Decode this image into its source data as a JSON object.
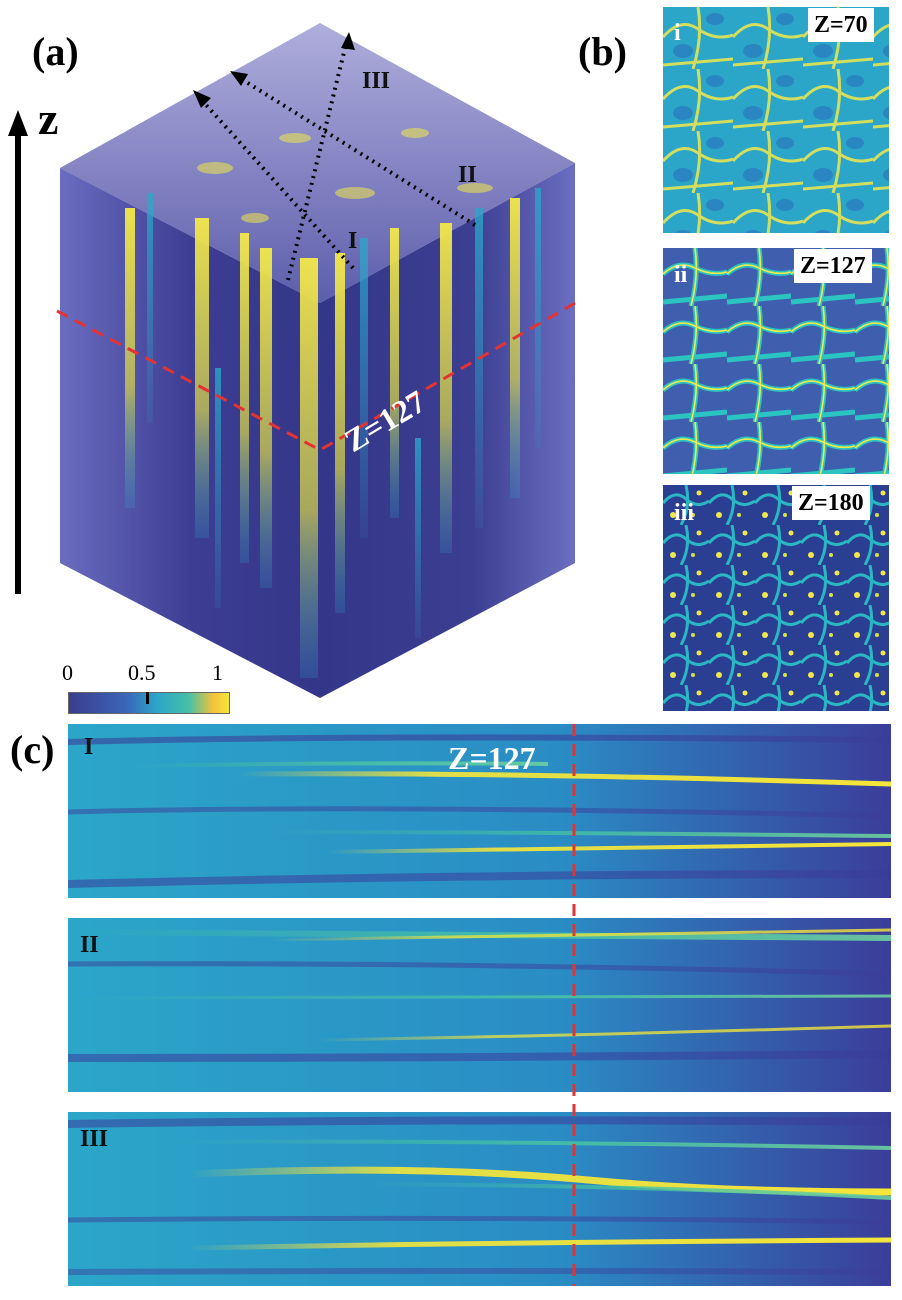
{
  "figure": {
    "panel_a": {
      "label": "(a)",
      "axis_label": "z",
      "cut_label": "Z=127",
      "line_labels": [
        "I",
        "II",
        "III"
      ],
      "colorbar": {
        "ticks": [
          "0",
          "0.5",
          "1"
        ],
        "range": [
          0,
          1
        ],
        "marker_value": 0.5
      }
    },
    "panel_b": {
      "label": "(b)",
      "slices": [
        {
          "tag": "i",
          "z_label": "Z=70"
        },
        {
          "tag": "ii",
          "z_label": "Z=127"
        },
        {
          "tag": "iii",
          "z_label": "Z=180"
        }
      ]
    },
    "panel_c": {
      "label": "(c)",
      "z_marker": "Z=127",
      "strips": [
        "I",
        "II",
        "III"
      ]
    },
    "colors": {
      "dark": "#3b3d8c",
      "mid": "#2ba6c9",
      "bright": "#f4e63a",
      "cut_line": "#e43333"
    }
  }
}
